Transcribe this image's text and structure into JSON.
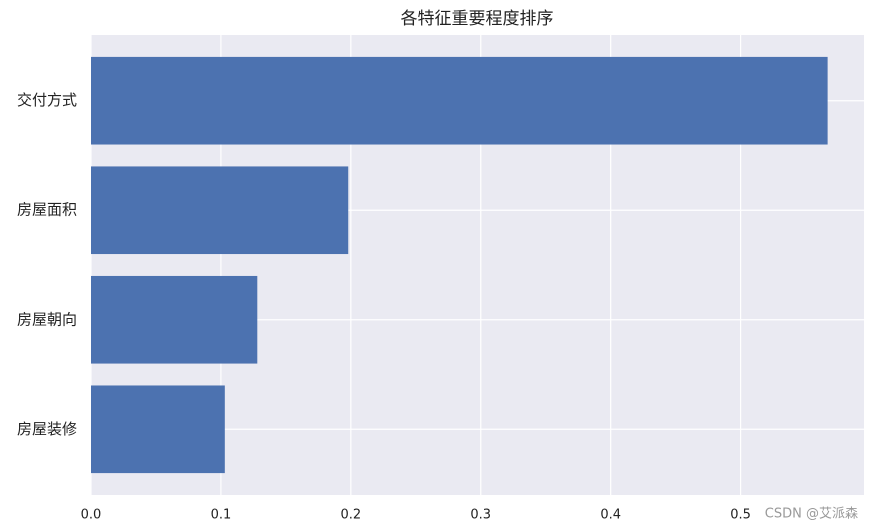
{
  "chart_data": {
    "type": "barh",
    "title": "各特征重要程度排序",
    "categories": [
      "交付方式",
      "房屋面积",
      "房屋朝向",
      "房屋装修"
    ],
    "values": [
      0.567,
      0.198,
      0.128,
      0.103
    ],
    "color": "#4c72b0",
    "xlim": [
      0,
      0.595
    ],
    "xticks": [
      {
        "value": 0,
        "label": "0.0"
      },
      0.1,
      0.2,
      0.3,
      0.4,
      0.5
    ],
    "grid": true
  },
  "watermark": "CSDN @艾派森"
}
